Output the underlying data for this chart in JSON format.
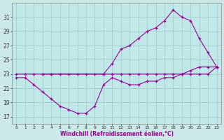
{
  "line1_x": [
    0,
    1,
    2,
    3,
    4,
    5,
    6,
    7,
    8,
    9,
    10,
    11,
    12,
    13,
    14,
    15,
    16,
    17,
    18,
    19,
    20,
    21,
    22,
    23
  ],
  "line1_y": [
    23.0,
    23.0,
    23.0,
    23.0,
    23.0,
    23.0,
    23.0,
    23.0,
    23.0,
    23.0,
    23.0,
    23.0,
    23.0,
    23.0,
    23.0,
    23.0,
    23.0,
    23.0,
    23.0,
    23.0,
    23.0,
    23.0,
    23.0,
    24.0
  ],
  "line2_x": [
    3,
    4,
    10,
    11,
    12,
    13,
    14,
    15,
    16,
    17,
    18,
    19,
    20,
    21,
    22,
    23
  ],
  "line2_y": [
    23.0,
    23.0,
    23.0,
    24.5,
    26.5,
    27.0,
    28.0,
    29.0,
    29.5,
    30.5,
    32.0,
    31.0,
    30.5,
    28.0,
    26.0,
    24.0
  ],
  "line3_x": [
    0,
    1,
    2,
    3,
    4,
    5,
    6,
    7,
    8,
    9,
    10,
    11,
    12,
    13,
    14,
    15,
    16,
    17,
    18,
    19,
    20,
    21,
    22,
    23
  ],
  "line3_y": [
    22.5,
    22.5,
    21.5,
    20.5,
    19.5,
    18.5,
    18.0,
    17.5,
    17.5,
    18.5,
    21.5,
    22.5,
    22.0,
    21.5,
    21.5,
    22.0,
    22.0,
    22.5,
    22.5,
    23.0,
    23.5,
    24.0,
    24.0,
    24.0
  ],
  "line_color": "#990099",
  "bg_color": "#cce8e8",
  "plot_bg": "#c0e8e8",
  "grid_color": "#9ec8c8",
  "xlabel": "Windchill (Refroidissement éolien,°C)",
  "xlim": [
    -0.5,
    23.5
  ],
  "ylim": [
    16.0,
    33.0
  ],
  "yticks": [
    17,
    19,
    21,
    23,
    25,
    27,
    29,
    31
  ],
  "xticks": [
    0,
    1,
    2,
    3,
    4,
    5,
    6,
    7,
    8,
    9,
    10,
    11,
    12,
    13,
    14,
    15,
    16,
    17,
    18,
    19,
    20,
    21,
    22,
    23
  ],
  "figsize": [
    3.2,
    2.0
  ],
  "dpi": 100
}
